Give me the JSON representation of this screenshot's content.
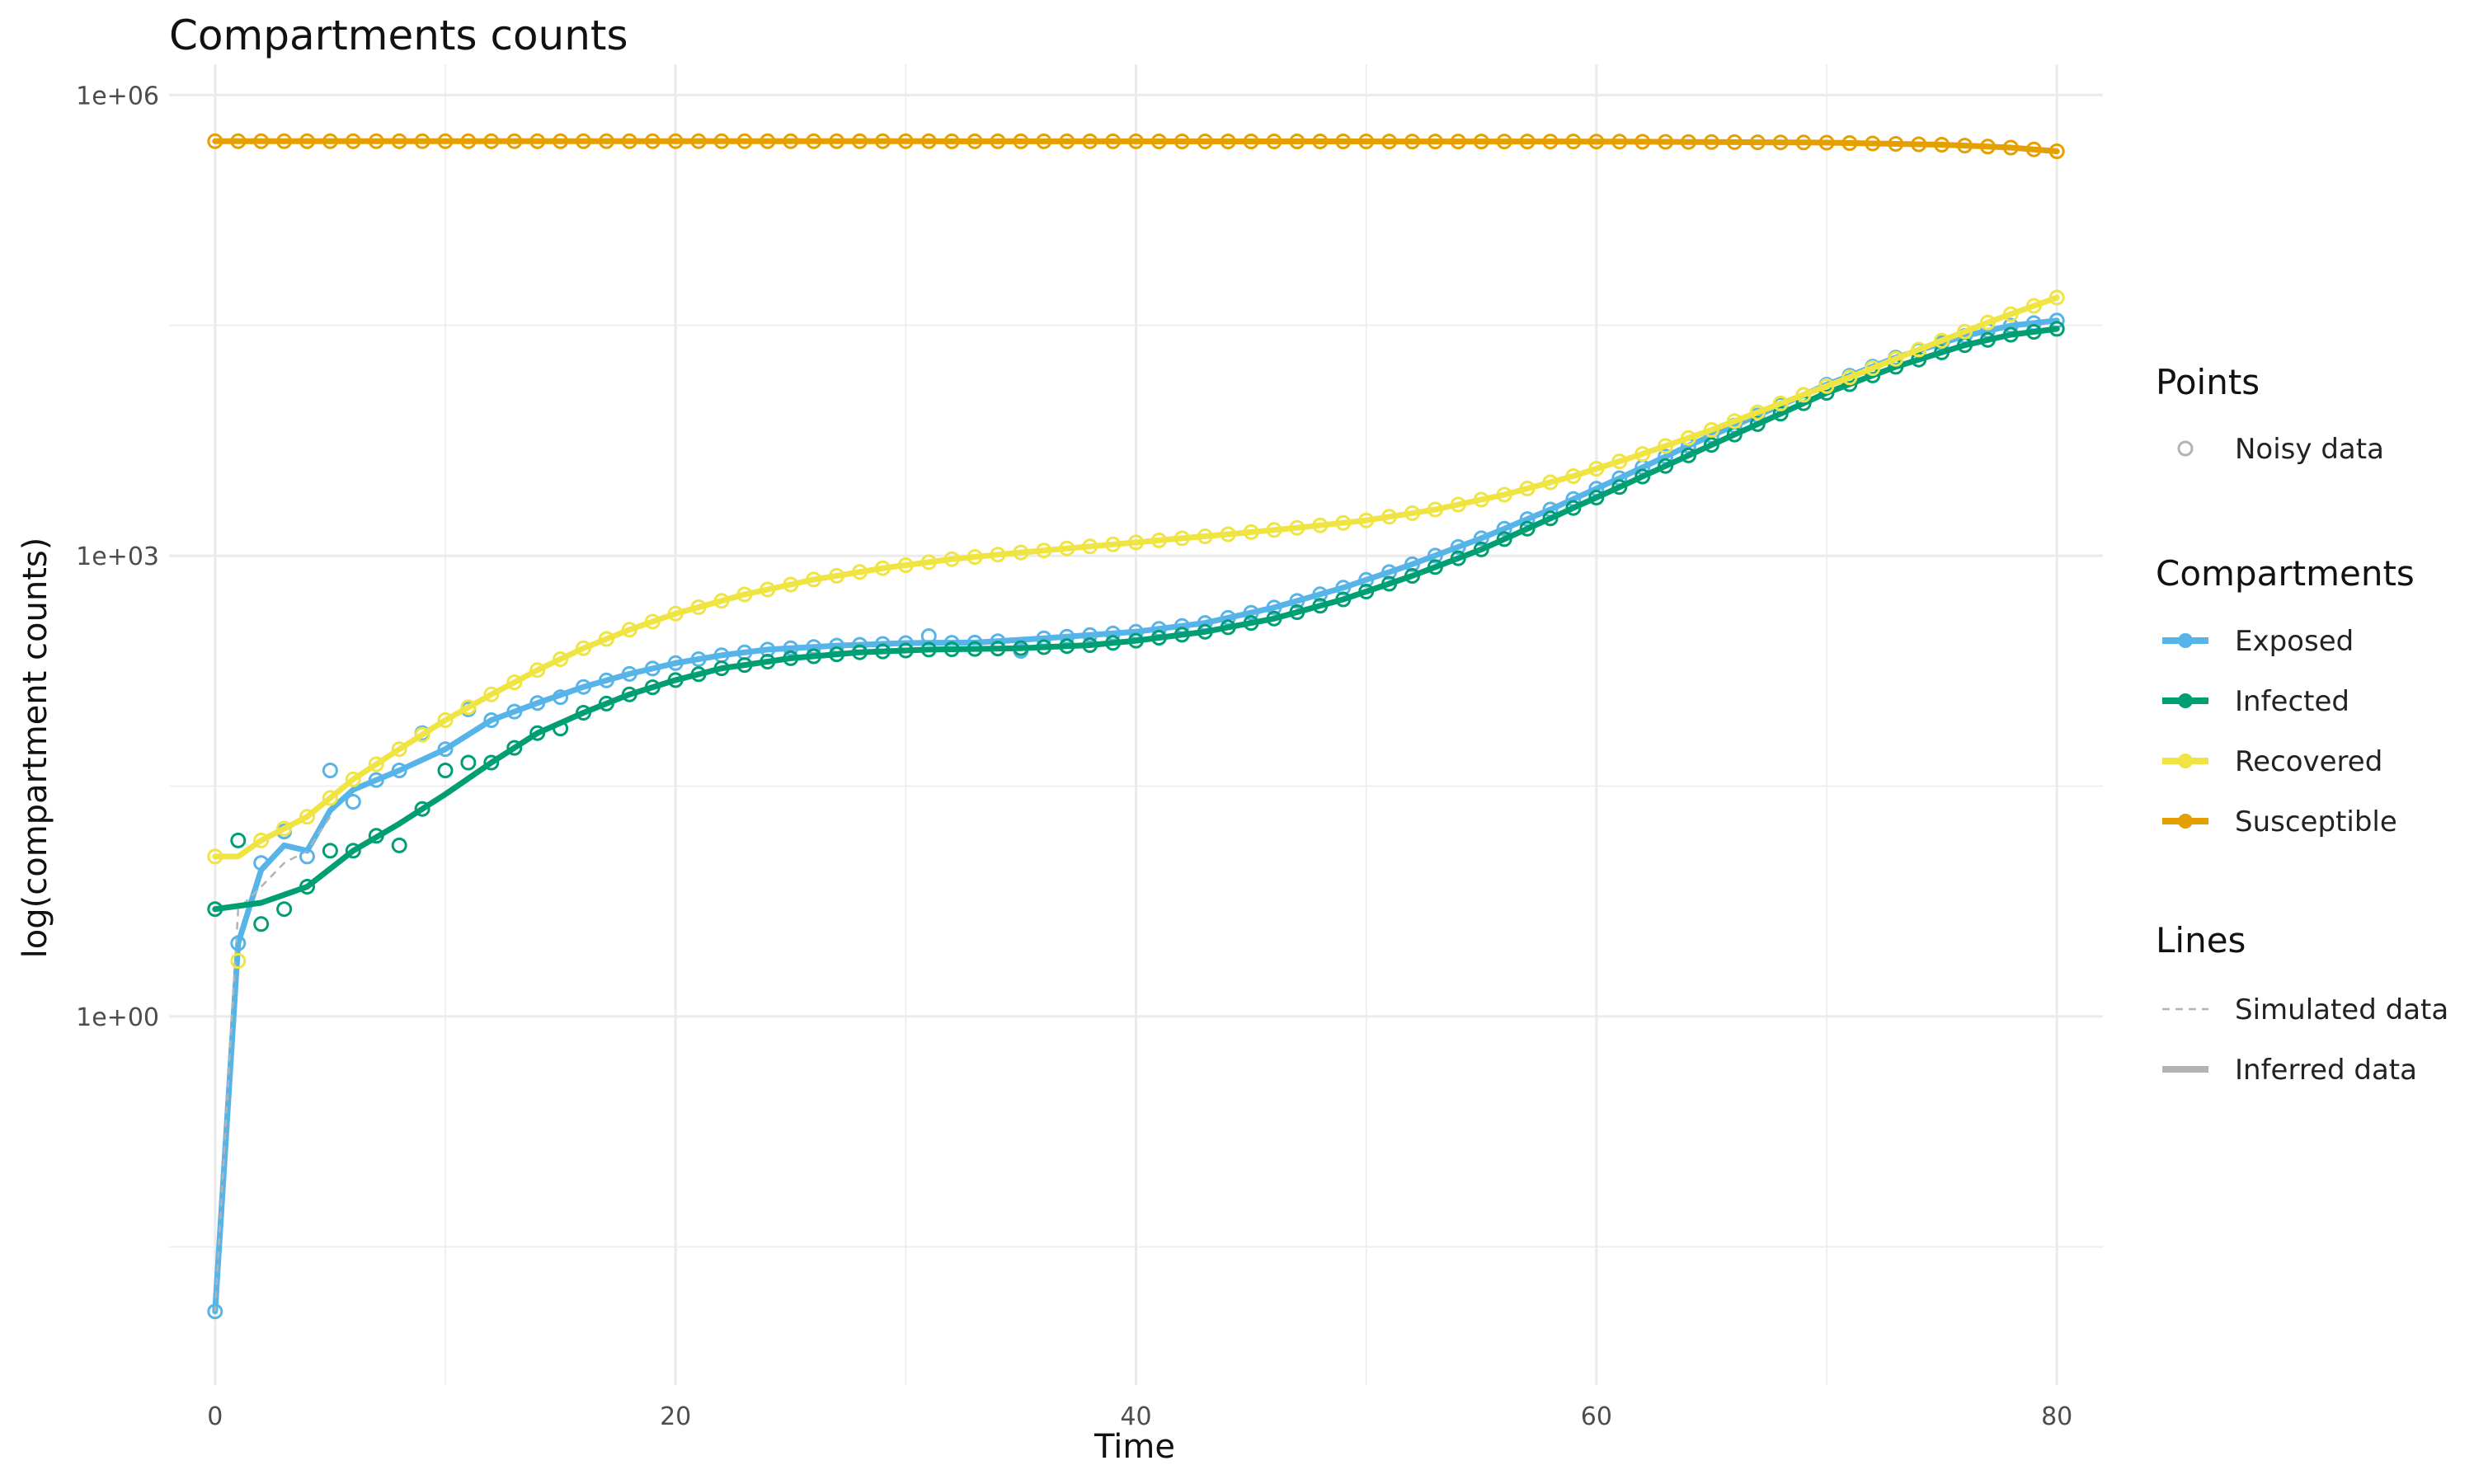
{
  "chart_data": {
    "type": "line",
    "title": "Compartments counts",
    "xlabel": "Time",
    "ylabel": "log(compartment counts)",
    "x_range": [
      -2,
      82
    ],
    "y_log10_range": [
      -2.4,
      6.2
    ],
    "y_scale": "log10",
    "x_ticks": [
      0,
      20,
      40,
      60,
      80
    ],
    "y_ticks": [
      {
        "value": 1,
        "label": "1e+00"
      },
      {
        "value": 1000,
        "label": "1e+03"
      },
      {
        "value": 1000000,
        "label": "1e+06"
      }
    ],
    "grid": true,
    "legend_placement": "right",
    "legend": {
      "points_title": "Points",
      "points_label": "Noisy data",
      "compartments_title": "Compartments",
      "lines_title": "Lines",
      "simulated_label": "Simulated data",
      "inferred_label": "Inferred data"
    },
    "series": [
      {
        "name": "Exposed",
        "color": "#56B4E9",
        "inferred_y": {
          "0": 0.012,
          "1": 3,
          "2": 9,
          "3": 13,
          "4": 12,
          "5": 22,
          "6": 30,
          "8": 40,
          "10": 55,
          "12": 85,
          "14": 110,
          "16": 140,
          "18": 170,
          "20": 200,
          "22": 225,
          "24": 245,
          "27": 260,
          "30": 270,
          "33": 272,
          "36": 290,
          "40": 320,
          "43": 365,
          "46": 460,
          "49": 620,
          "52": 880,
          "55": 1300,
          "58": 2000,
          "61": 3200,
          "64": 5200,
          "67": 8200,
          "70": 13000,
          "73": 19500,
          "76": 27000,
          "78": 31500,
          "80": 34000
        },
        "noisy_y": {
          "0": 0.012,
          "2": 10,
          "3": 16,
          "4": 11,
          "5": 40,
          "6": 25,
          "9": 70,
          "11": 100,
          "15": 120,
          "31": 300,
          "35": 240
        },
        "simulated_y": {
          "0": 0.012,
          "1": 5,
          "2": 7,
          "3": 10,
          "4": 12,
          "5": 20
        }
      },
      {
        "name": "Infected",
        "color": "#009E73",
        "inferred_y": {
          "0": 5,
          "2": 5.5,
          "4": 7,
          "6": 12,
          "8": 18,
          "10": 28,
          "12": 45,
          "14": 70,
          "16": 95,
          "18": 125,
          "20": 155,
          "22": 185,
          "25": 215,
          "28": 235,
          "31": 245,
          "35": 250,
          "38": 262,
          "40": 280,
          "43": 320,
          "46": 390,
          "49": 520,
          "52": 740,
          "55": 1100,
          "58": 1750,
          "61": 2800,
          "64": 4500,
          "67": 7200,
          "70": 11500,
          "73": 17000,
          "76": 23500,
          "78": 27500,
          "80": 30000
        },
        "noisy_y": {
          "1": 14,
          "2": 4,
          "3": 5,
          "5": 12,
          "7": 15,
          "8": 13,
          "10": 40,
          "11": 45,
          "15": 75
        }
      },
      {
        "name": "Recovered",
        "color": "#F0E442",
        "inferred_y": {
          "0": 11,
          "1": 11,
          "2": 14,
          "4": 20,
          "6": 35,
          "8": 55,
          "10": 85,
          "12": 125,
          "14": 180,
          "16": 250,
          "18": 330,
          "20": 420,
          "23": 560,
          "26": 700,
          "29": 830,
          "32": 950,
          "35": 1050,
          "38": 1150,
          "41": 1260,
          "44": 1380,
          "47": 1520,
          "50": 1700,
          "53": 2000,
          "56": 2500,
          "59": 3300,
          "62": 4600,
          "65": 6600,
          "68": 9800,
          "71": 14500,
          "74": 22000,
          "77": 33000,
          "80": 48000
        },
        "noisy_y": {
          "1": 2.3
        }
      },
      {
        "name": "Susceptible",
        "color": "#E69F00",
        "inferred_y": {
          "0": 500000,
          "30": 500000,
          "60": 498000,
          "70": 490000,
          "75": 475000,
          "78": 455000,
          "80": 430000
        },
        "noisy_y": {}
      }
    ]
  }
}
